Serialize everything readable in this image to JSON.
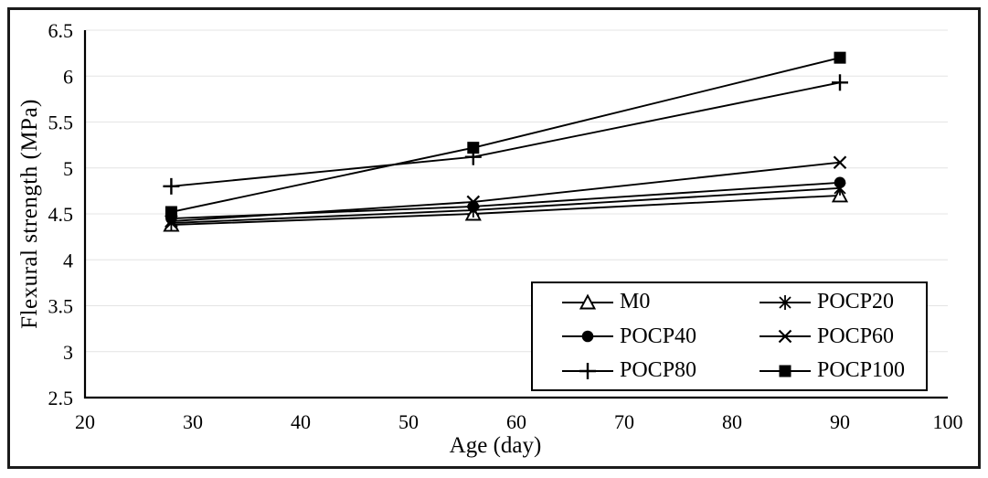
{
  "figure": {
    "background": "#ffffff",
    "border_color": "#1b1b1b",
    "line_color": "#000000",
    "gridline_color": "#e4e4e4"
  },
  "chart_data": {
    "type": "line",
    "title": "",
    "xlabel": "Age (day)",
    "ylabel": "Flexural strength (MPa)",
    "x": [
      28,
      56,
      90
    ],
    "xlim": [
      20,
      100
    ],
    "ylim": [
      2.5,
      6.5
    ],
    "x_tick_labels": [
      "20",
      "30",
      "40",
      "50",
      "60",
      "70",
      "80",
      "90",
      "100"
    ],
    "y_tick_labels": [
      "2.5",
      "3",
      "3.5",
      "4",
      "4.5",
      "5",
      "5.5",
      "6",
      "6.5"
    ],
    "x_ticks": [
      20,
      30,
      40,
      50,
      60,
      70,
      80,
      90,
      100
    ],
    "y_ticks": [
      2.5,
      3,
      3.5,
      4,
      4.5,
      5,
      5.5,
      6,
      6.5
    ],
    "grid": "horizontal",
    "legend_position": "inside-bottom-right",
    "series": [
      {
        "name": "M0",
        "marker": "triangle-open",
        "values": [
          4.38,
          4.5,
          4.7
        ]
      },
      {
        "name": "POCP20",
        "marker": "asterisk",
        "values": [
          4.4,
          4.54,
          4.78
        ]
      },
      {
        "name": "POCP40",
        "marker": "circle-filled",
        "values": [
          4.45,
          4.58,
          4.84
        ]
      },
      {
        "name": "POCP60",
        "marker": "x",
        "values": [
          4.42,
          4.63,
          5.06
        ]
      },
      {
        "name": "POCP80",
        "marker": "plus",
        "values": [
          4.8,
          5.12,
          5.93
        ]
      },
      {
        "name": "POCP100",
        "marker": "square-filled",
        "values": [
          4.52,
          5.22,
          6.2
        ]
      }
    ]
  }
}
